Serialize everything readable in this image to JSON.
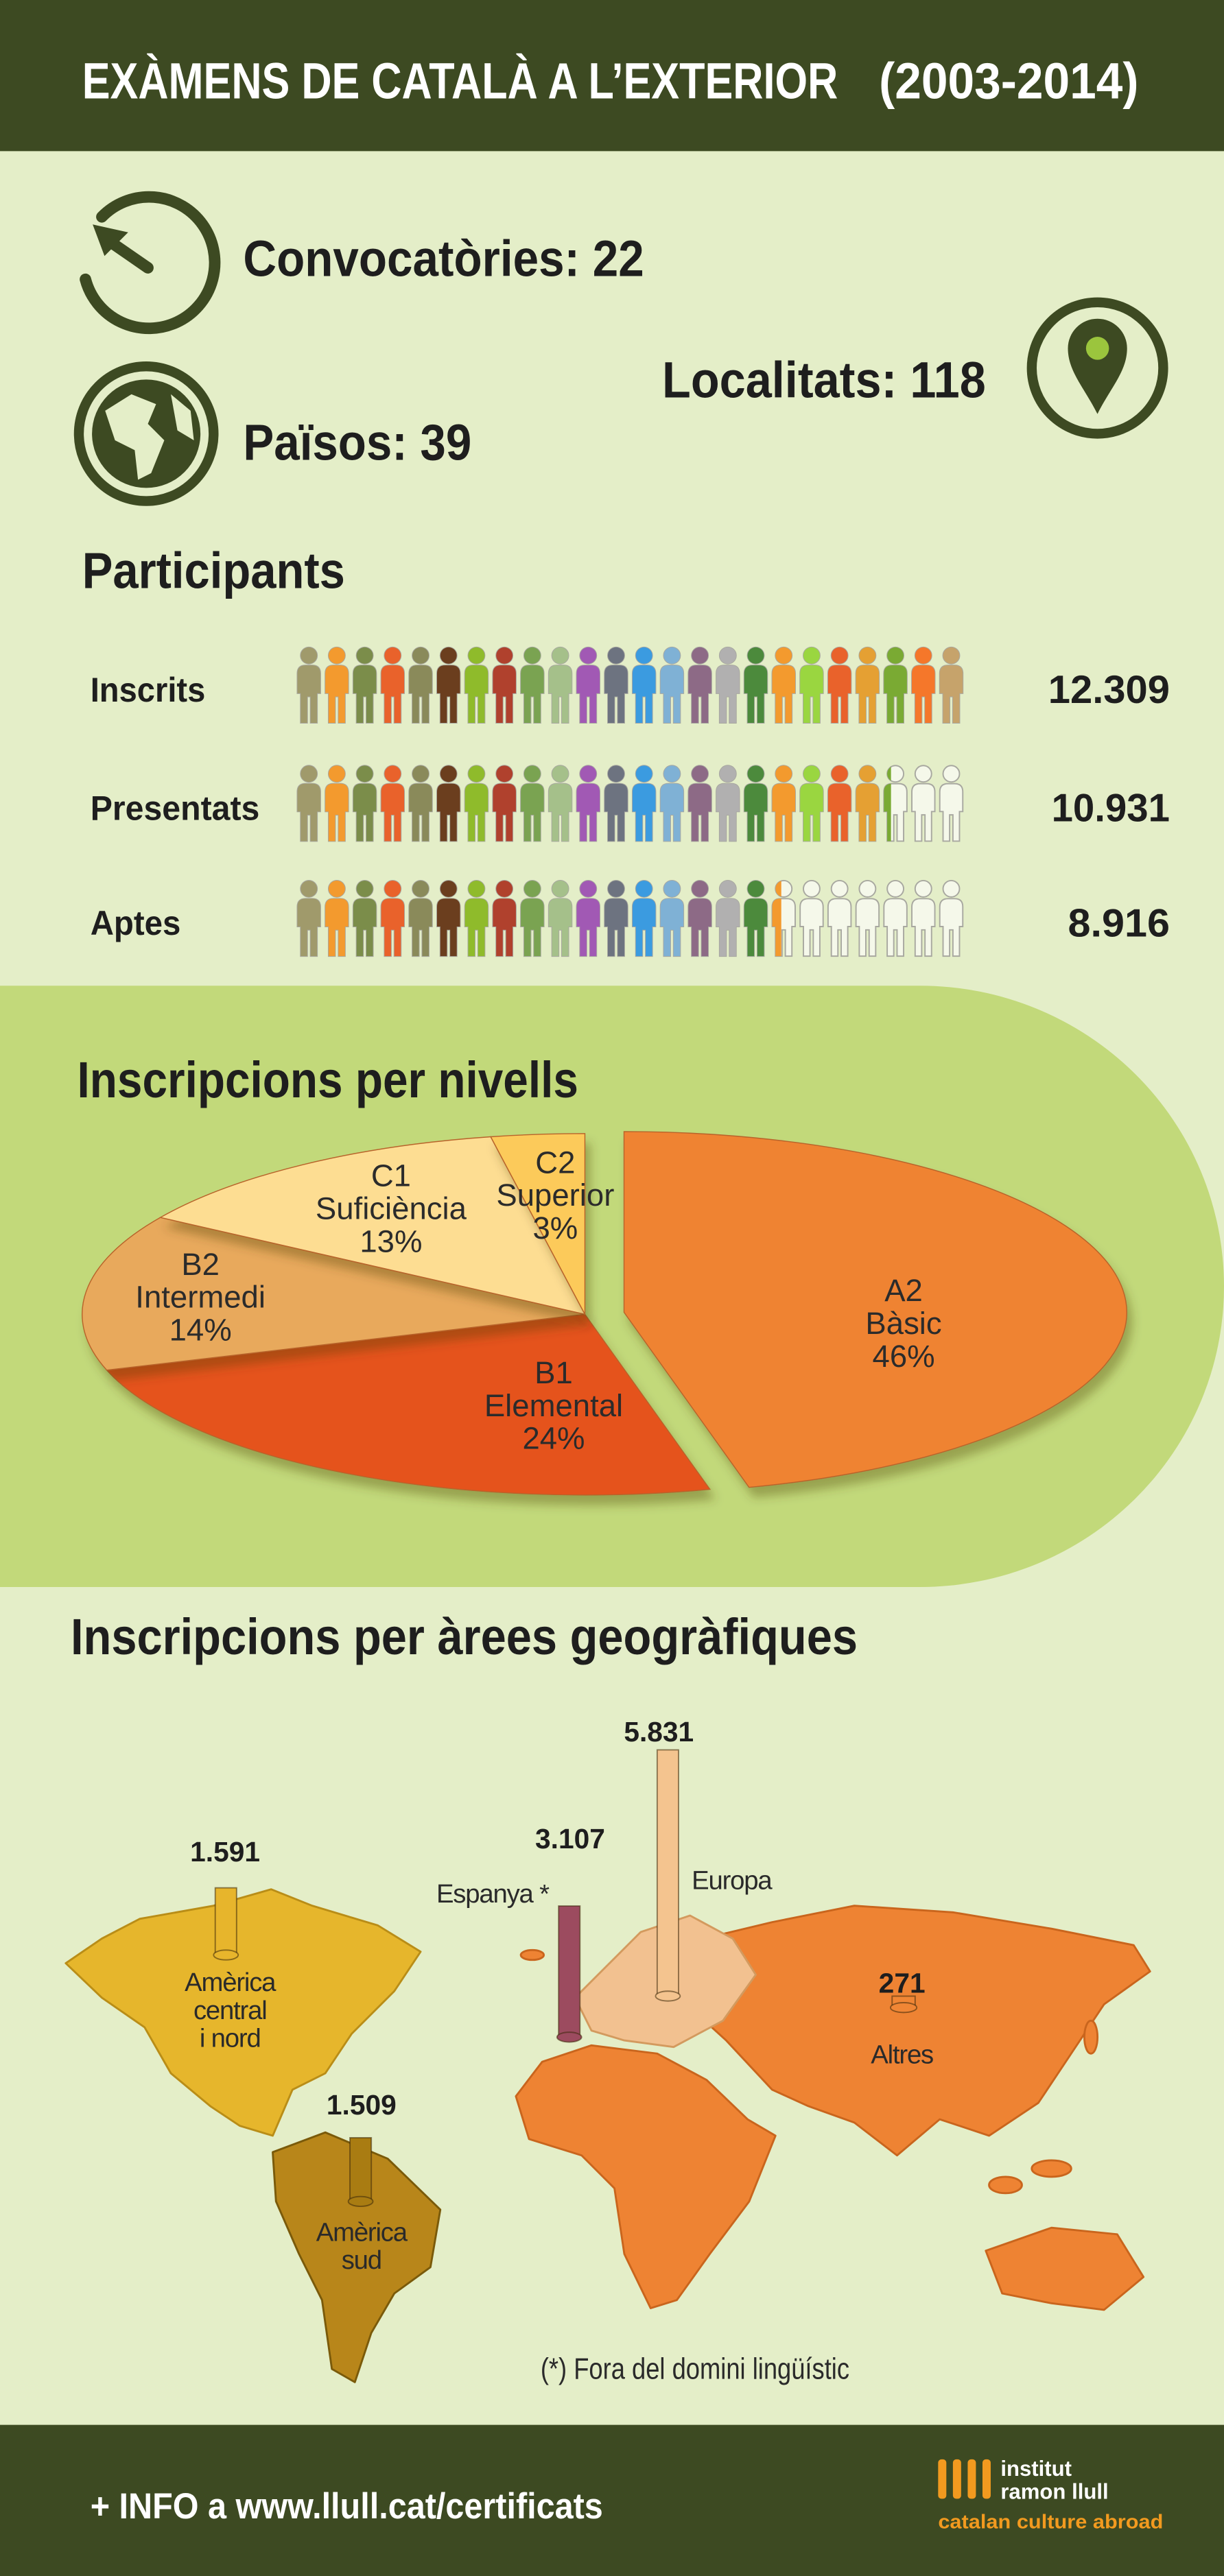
{
  "header": {
    "title": "EXÀMENS DE CATALÀ A L’EXTERIOR",
    "period": "(2003-2014)"
  },
  "stats": {
    "convocatories": "Convocatòries: 22",
    "paisos": "Països: 39",
    "localitats": "Localitats: 118"
  },
  "chart_data": [
    {
      "type": "pictogram",
      "title": "Participants",
      "categories": [
        "Inscrits",
        "Presentats",
        "Aptes"
      ],
      "values": [
        12309,
        10931,
        8916
      ],
      "value_labels": [
        "12.309",
        "10.931",
        "8.916"
      ],
      "colors": [
        "#a09a6b",
        "#f39a2e",
        "#7b8d4a",
        "#e9622b",
        "#8a8a5a",
        "#6b3e1e",
        "#8fbb2b",
        "#b0412d",
        "#7aa351",
        "#a5c08a",
        "#a159b4",
        "#6d7380",
        "#3b9be0",
        "#7fb1d5",
        "#8d6a86",
        "#b1b0b0",
        "#4c8a3c",
        "#f39a2e",
        "#9ad640",
        "#e9622b",
        "#e5a033",
        "#7aaa33",
        "#f5772a",
        "#c6a36b"
      ]
    },
    {
      "type": "pie",
      "title": "Inscripcions per nivells",
      "categories": [
        "A2",
        "B1",
        "B2",
        "C1",
        "C2"
      ],
      "names": [
        "Bàsic",
        "Elemental",
        "Intermedi",
        "Suficiència",
        "Superior"
      ],
      "values": [
        46,
        24,
        14,
        13,
        3
      ],
      "value_labels": [
        "46%",
        "24%",
        "14%",
        "13%",
        "3%"
      ],
      "colors": [
        "#ef8331",
        "#e5531c",
        "#e8a95b",
        "#fddd92",
        "#fcca5a"
      ],
      "explode": [
        true,
        false,
        false,
        false,
        false
      ]
    },
    {
      "type": "bar",
      "title": "Inscripcions per àrees geogràfiques",
      "categories": [
        [
          "Amèrica",
          "central",
          "i nord"
        ],
        [
          "Amèrica",
          "sud"
        ],
        [
          "Espanya *"
        ],
        [
          "Europa"
        ],
        [
          "Altres"
        ]
      ],
      "values": [
        1591,
        1509,
        3107,
        5831,
        271
      ],
      "value_labels": [
        "1.591",
        "1.509",
        "3.107",
        "5.831",
        "271"
      ],
      "colors": [
        "#e7b52c",
        "#a97c12",
        "#9c4b5f",
        "#f4c48f",
        "#f08635"
      ],
      "note": "(*) Fora del domini lingüístic"
    }
  ],
  "footer": {
    "info": "+ INFO a www.llull.cat/certificats",
    "logo_line1": "institut",
    "logo_line2": "ramon llull",
    "tagline": "catalan culture abroad"
  }
}
